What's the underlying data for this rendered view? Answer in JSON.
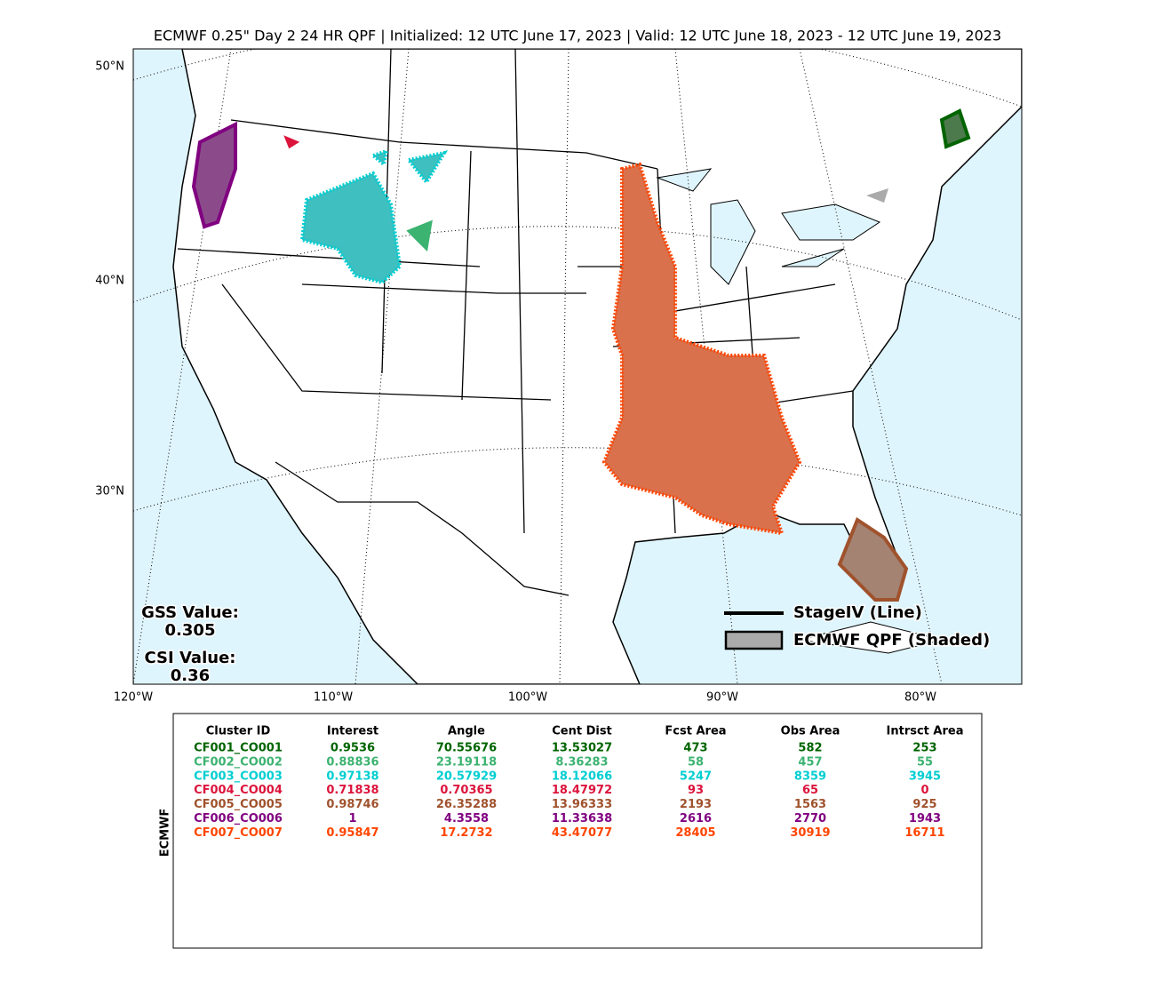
{
  "header": {
    "title": "ECMWF 0.25\" Day 2 24 HR QPF | Initialized: 12 UTC June 17, 2023 | Valid: 12 UTC June 18, 2023 - 12 UTC June 19, 2023"
  },
  "map": {
    "lat_labels": [
      "50°N",
      "40°N",
      "30°N"
    ],
    "lon_labels": [
      "120°W",
      "110°W",
      "100°W",
      "90°W",
      "80°W"
    ],
    "stats": {
      "gss_label": "GSS Value:",
      "gss_value": "0.305",
      "csi_label": "CSI Value:",
      "csi_value": "0.36"
    },
    "legend": [
      "StageIV (Line)",
      "ECMWF QPF (Shaded)"
    ]
  },
  "table": {
    "side_label": "ECMWF",
    "headers": [
      "Cluster ID",
      "Interest",
      "Angle",
      "Cent Dist",
      "Fcst Area",
      "Obs Area",
      "Intrsct Area"
    ],
    "rows": [
      {
        "color": "#006400",
        "cells": [
          "CF001_CO001",
          "0.9536",
          "70.55676",
          "13.53027",
          "473",
          "582",
          "253"
        ]
      },
      {
        "color": "#3cb371",
        "cells": [
          "CF002_CO002",
          "0.88836",
          "23.19118",
          "8.36283",
          "58",
          "457",
          "55"
        ]
      },
      {
        "color": "#00ced1",
        "cells": [
          "CF003_CO003",
          "0.97138",
          "20.57929",
          "18.12066",
          "5247",
          "8359",
          "3945"
        ]
      },
      {
        "color": "#dc143c",
        "cells": [
          "CF004_CO004",
          "0.71838",
          "0.70365",
          "18.47972",
          "93",
          "65",
          "0"
        ]
      },
      {
        "color": "#a0522d",
        "cells": [
          "CF005_CO005",
          "0.98746",
          "26.35288",
          "13.96333",
          "2193",
          "1563",
          "925"
        ]
      },
      {
        "color": "#800080",
        "cells": [
          "CF006_CO006",
          "1",
          "4.3558",
          "11.33638",
          "2616",
          "2770",
          "1943"
        ]
      },
      {
        "color": "#ff4500",
        "cells": [
          "CF007_CO007",
          "0.95847",
          "17.2732",
          "43.47077",
          "28405",
          "30919",
          "16711"
        ]
      }
    ]
  }
}
